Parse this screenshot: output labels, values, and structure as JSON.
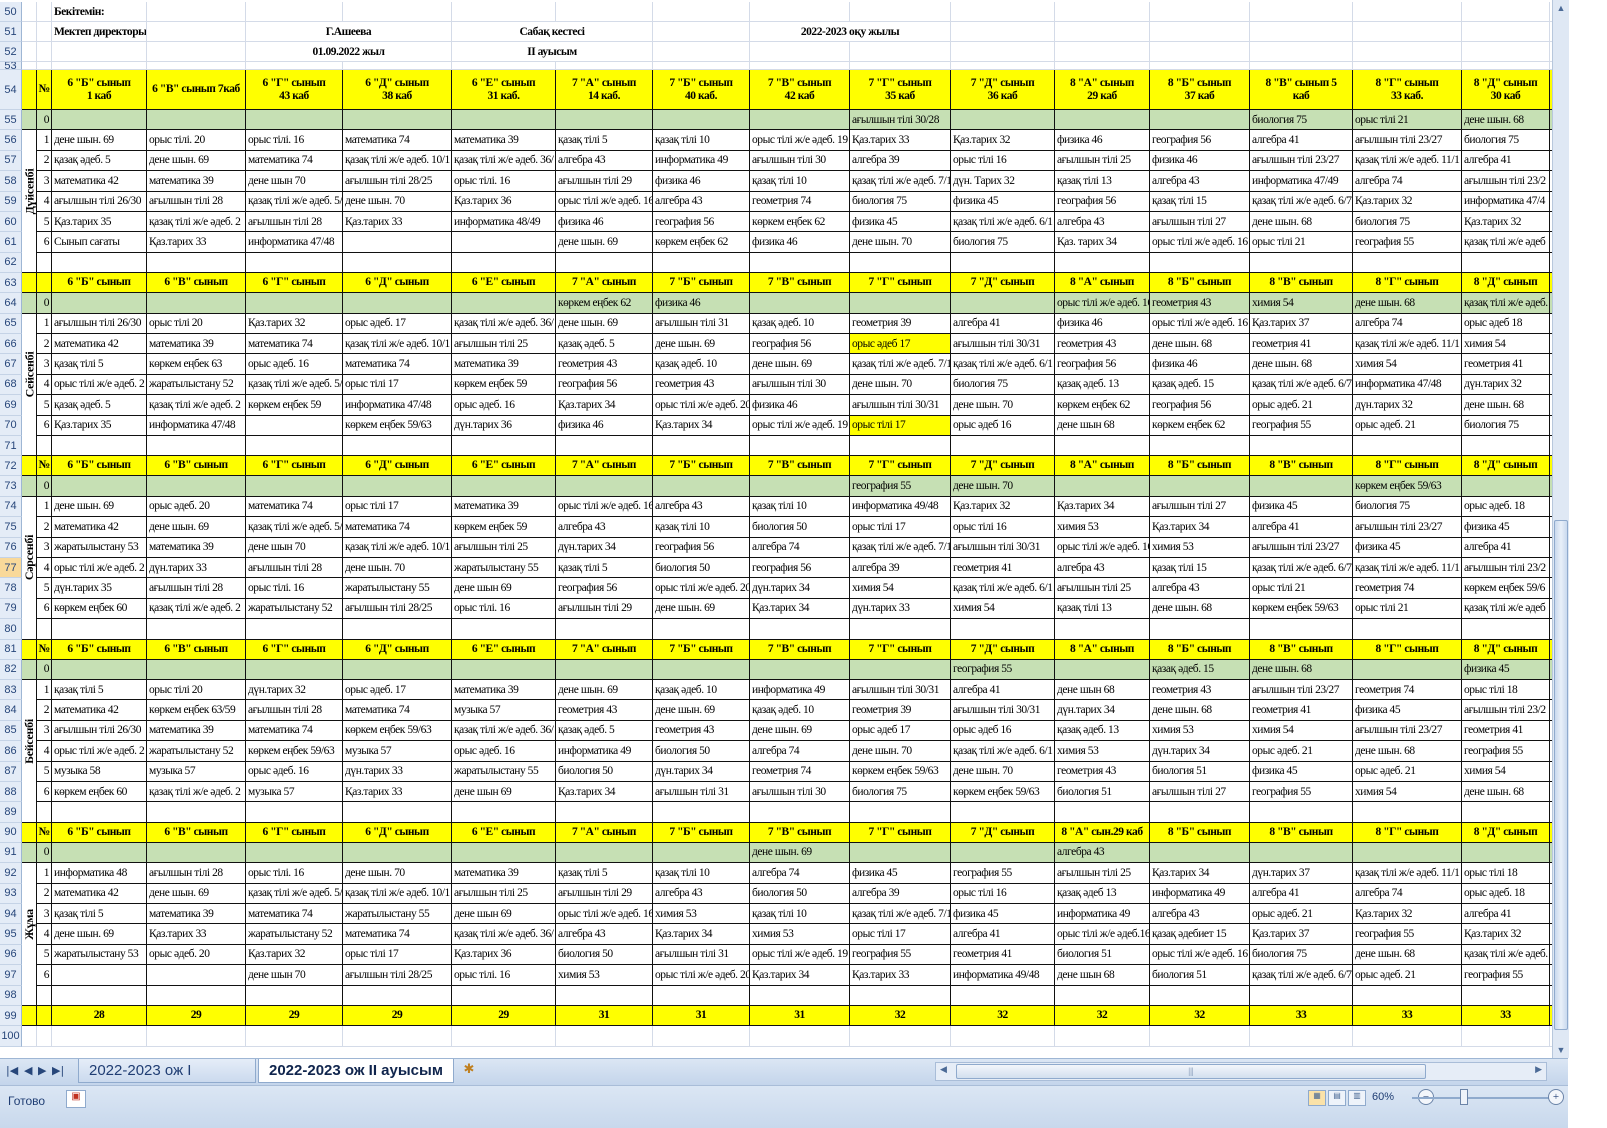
{
  "header": {
    "approve": "Бекітемін:",
    "director_label": "Мектеп директоры",
    "director_name": "Г.Ашеева",
    "date": "01.09.2022 жыл",
    "schedule_title": "Сабақ кестесі",
    "shift": "II ауысым",
    "year": "2022-2023 оқу жылы"
  },
  "row_numbers": [
    "50",
    "51",
    "52",
    "53",
    "54",
    "55",
    "56",
    "57",
    "58",
    "59",
    "60",
    "61",
    "62",
    "63",
    "64",
    "65",
    "66",
    "67",
    "68",
    "69",
    "70",
    "71",
    "72",
    "73",
    "74",
    "75",
    "76",
    "77",
    "78",
    "79",
    "80",
    "81",
    "82",
    "83",
    "84",
    "85",
    "86",
    "87",
    "88",
    "89",
    "90",
    "91",
    "92",
    "93",
    "94",
    "95",
    "96",
    "97",
    "98",
    "99",
    "100"
  ],
  "selected_row": "77",
  "lesson_numbers": [
    "0",
    "1",
    "2",
    "3",
    "4",
    "5",
    "6"
  ],
  "num_header": "№",
  "colors": {
    "header_yellow": "#ffff00",
    "zero_row_green": "#c6e0b4",
    "highlight": "#ffff00"
  },
  "days": [
    {
      "name": "Дүйсенбі",
      "num_label": "№",
      "classes": [
        "6 \"Б\" сынып\n1 каб",
        "6 \"В\" сынып  7каб",
        "6 \"Г\" сынып\n43 каб",
        "6 \"Д\" сынып\n38 каб",
        "6 \"Е\" сынып\n31 каб.",
        "7 \"А\" сынып\n14 каб.",
        "7 \"Б\" сынып\n40 каб.",
        "7 \"В\" сынып\n42 каб",
        "7 \"Г\" сынып\n35 каб",
        "7 \"Д\" сынып\n36 каб",
        "8 \"А\" сынып\n29 каб",
        "8 \"Б\" сынып\n37 каб",
        "8 \"В\" сынып        5\nкаб",
        "8 \"Г\" сынып\n33 каб.",
        "8 \"Д\" сынып\n30 каб"
      ],
      "row0": [
        "",
        "",
        "",
        "",
        "",
        "",
        "",
        "",
        "ағылшын тілі 30/28",
        "",
        "",
        "",
        "биология 75",
        "орыс тілі 21",
        "дене шын. 68"
      ],
      "lessons": [
        [
          "дене шын. 69",
          "орыс тілі. 20",
          "орыс тілі. 16",
          "математика 74",
          "математика 39",
          "қазақ тілі 5",
          "қазақ тілі 10",
          "орыс тілі ж/е әдеб. 19",
          "Қаз.тарих 33",
          "Қаз.тарих 32",
          "физика 46",
          "география 56",
          "алгебра 41",
          "ағылшын тілі 23/27",
          "биология 75"
        ],
        [
          "қазақ әдеб. 5",
          "дене шын. 69",
          "математика 74",
          "қазақ тілі ж/е әдеб. 10/1",
          "қазақ тілі ж/е әдеб. 36/",
          "алгебра 43",
          "информатика 49",
          "ағылшын тілі 30",
          "алгебра 39",
          "орыс тілі 16",
          "ағылшын тілі 25",
          "физика 46",
          "ағылшын тілі 23/27",
          "қазақ тілі ж/е әдеб. 11/1",
          "алгебра 41"
        ],
        [
          "математика 42",
          "математика 39",
          "дене шын 70",
          "ағылшын тілі 28/25",
          "орыс тілі. 16",
          "ағылшын тілі 29",
          "физика 46",
          "қазақ тілі 10",
          "қазақ тілі ж/е әдеб. 7/1",
          "дүн. Тарих  32",
          "қазақ тілі 13",
          "алгебра 43",
          "информатика 47/49",
          "алгебра 74",
          "ағылшын тілі 23/2"
        ],
        [
          "ағылшын тілі 26/30",
          "ағылшын тілі 28",
          "қазақ тілі ж/е әдеб. 5/",
          "дене шын. 70",
          "Қаз.тарих 36",
          "орыс тілі ж/е әдеб. 16",
          "алгебра 43",
          "геометрия 74",
          "биология 75",
          "физика 45",
          "география 56",
          "қазақ тілі 15",
          "қазақ тілі ж/е әдеб. 6/7",
          "Қаз.тарих 32",
          "информатика 47/4"
        ],
        [
          "Қаз.тарих 35",
          "қазақ тілі ж/е әдеб. 2",
          "ағылшын тілі 28",
          "Қаз.тарих 33",
          "информатика 48/49",
          "физика 46",
          "география 56",
          "көркем еңбек 62",
          "физика 45",
          "қазақ тілі ж/е әдеб. 6/1",
          "алгебра 43",
          "ағылшын тілі 27",
          "дене шын. 68",
          "биология 75",
          "Қаз.тарих 32"
        ],
        [
          "Сынып сағаты",
          "Қаз.тарих 33",
          "информатика 47/48",
          "",
          "",
          "дене шын. 69",
          "көркем еңбек 62",
          "физика 46",
          "дене шын. 70",
          "биология 75",
          "Қаз. тарих 34",
          "орыс тілі ж/е әдеб. 16",
          "орыс тілі 21",
          "география 55",
          "қазақ тілі ж/е әдеб"
        ]
      ],
      "highlight": []
    },
    {
      "name": "Сейсенбі",
      "num_label": "",
      "classes": [
        "6 \"Б\" сынып",
        "6 \"В\" сынып",
        "6 \"Г\" сынып",
        "6 \"Д\" сынып",
        "6 \"Е\" сынып",
        "7 \"А\" сынып",
        "7 \"Б\" сынып",
        "7 \"В\" сынып",
        "7 \"Г\" сынып",
        "7 \"Д\" сынып",
        "8 \"А\" сынып",
        "8 \"Б\" сынып",
        "8 \"В\" сынып",
        "8 \"Г\" сынып",
        "8 \"Д\" сынып"
      ],
      "row0": [
        "",
        "",
        "",
        "",
        "",
        "көркем еңбек 62",
        "физика 46",
        "",
        "",
        "",
        "орыс тілі ж/е әдеб. 16",
        "геометрия 43",
        "химия 54",
        "дене шын. 68",
        "қазақ тілі ж/е әдеб."
      ],
      "lessons": [
        [
          "ағылшын тілі 26/30",
          "орыс тілі 20",
          "Қаз.тарих 32",
          "орыс әдеб. 17",
          "қазақ тілі ж/е әдеб. 36/",
          "дене шын. 69",
          "ағылшын тілі 31",
          "қазақ әдеб. 10",
          "геометрия 39",
          "алгебра 41",
          "физика 46",
          "орыс тілі ж/е әдеб. 16",
          "Қаз.тарих 37",
          "алгебра 74",
          "орыс әдеб 18"
        ],
        [
          "математика 42",
          "математика 39",
          "математика 74",
          "қазақ тілі ж/е әдеб. 10/1",
          "ағылшын тілі 25",
          "қазақ әдеб. 5",
          "дене шын. 69",
          "география 56",
          "орыс әдеб 17",
          "ағылшын тілі 30/31",
          "геометрия 43",
          "дене шын. 68",
          "геометрия 41",
          "қазақ тілі ж/е әдеб. 11/1",
          "химия 54"
        ],
        [
          "қазақ тілі 5",
          "көркем еңбек 63",
          "орыс әдеб. 16",
          "математика 74",
          "математика 39",
          "геометрия 43",
          "қазақ әдеб. 10",
          "дене шын. 69",
          "қазақ тілі ж/е әдеб. 7/1",
          "қазақ тілі ж/е әдеб. 6/1",
          "география 56",
          "физика 46",
          "дене шын. 68",
          "химия 54",
          "геометрия 41"
        ],
        [
          "орыс тілі ж/е әдеб. 2",
          "жаратылыстану 52",
          "қазақ тілі ж/е әдеб. 5/",
          "орыс тілі 17",
          "көркем еңбек 59",
          "география 56",
          "геометрия 43",
          "ағылшын тілі 30",
          "дене шын. 70",
          "биология 75",
          "қазақ әдеб. 13",
          "қазақ әдеб. 15",
          "қазақ тілі ж/е әдеб. 6/7",
          "информатика 47/48",
          "дүн.тарих 32"
        ],
        [
          "қазақ әдеб. 5",
          "қазақ тілі ж/е әдеб. 2",
          "көркем еңбек 59",
          "информатика 47/48",
          "орыс әдеб. 16",
          "Қаз.тарих 34",
          "орыс тілі ж/е әдеб. 20",
          "физика 46",
          "ағылшын тілі 30/31",
          "дене шын. 70",
          "көркем еңбек 62",
          "география 56",
          "орыс әдеб. 21",
          "дүн.тарих 32",
          "дене шын. 68"
        ],
        [
          "Қаз.тарих 35",
          "информатика 47/48",
          "",
          "көркем еңбек 59/63",
          "дүн.тарих 36",
          "физика 46",
          "Қаз.тарих 34",
          "орыс тілі ж/е әдеб. 19",
          "орыс тілі 17",
          "орыс әдеб 16",
          "дене шын 68",
          "көркем еңбек 62",
          "география 55",
          "орыс әдеб. 21",
          "биология 75"
        ]
      ],
      "highlight": [
        [
          1,
          8
        ],
        [
          5,
          8
        ]
      ]
    },
    {
      "name": "Сәрсенбі",
      "num_label": "№",
      "classes": [
        "6 \"Б\" сынып",
        "6 \"В\" сынып",
        "6 \"Г\" сынып",
        "6 \"Д\" сынып",
        "6 \"Е\" сынып",
        "7 \"А\" сынып",
        "7 \"Б\" сынып",
        "7 \"В\" сынып",
        "7 \"Г\" сынып",
        "7 \"Д\" сынып",
        "8 \"А\" сынып",
        "8 \"Б\" сынып",
        "8 \"В\" сынып",
        "8 \"Г\" сынып",
        "8 \"Д\" сынып"
      ],
      "row0": [
        "",
        "",
        "",
        "",
        "",
        "",
        "",
        "",
        "география 55",
        "дене шын. 70",
        "",
        "",
        "",
        "көркем еңбек 59/63",
        ""
      ],
      "lessons": [
        [
          "дене шын. 69",
          "орыс әдеб. 20",
          "математика 74",
          "орыс тілі 17",
          "математика 39",
          "орыс тілі ж/е әдеб. 16",
          "алгебра 43",
          "қазақ тілі 10",
          "информатика 49/48",
          "Қаз.тарих 32",
          "Қаз.тарих 34",
          "ағылшын тілі 27",
          "физика 45",
          "биология 75",
          "орыс әдеб. 18"
        ],
        [
          "математика 42",
          "дене шын. 69",
          "қазақ тілі ж/е әдеб. 5/",
          "математика 74",
          "көркем еңбек 59",
          "алгебра 43",
          "қазақ тілі 10",
          "биология 50",
          "орыс тілі 17",
          "орыс тілі 16",
          "химия 53",
          "Қаз.тарих 34",
          "алгебра 41",
          "ағылшын тілі 23/27",
          "физика 45"
        ],
        [
          "жаратылыстану 53",
          "математика 39",
          "дене шын 70",
          "қазақ тілі ж/е әдеб. 10/1",
          "ағылшын тілі 25",
          "дүн.тарих 34",
          "география 56",
          "алгебра 74",
          "қазақ тілі ж/е әдеб. 7/1",
          "ағылшын тілі 30/31",
          "орыс тілі ж/е әдеб. 16",
          "химия 53",
          "ағылшын тілі 23/27",
          "физика 45",
          "алгебра 41"
        ],
        [
          "орыс тілі ж/е әдеб. 2",
          "дүн.тарих 33",
          "ағылшын тілі 28",
          "дене шын. 70",
          "жаратылыстану 55",
          "қазақ тілі 5",
          "биология 50",
          "география 56",
          "алгебра 39",
          "геометрия  41",
          "алгебра 43",
          "қазақ тілі 15",
          "қазақ тілі ж/е әдеб. 6/7",
          "қазақ тілі ж/е әдеб. 11/1",
          "ағылшын тілі 23/2"
        ],
        [
          "дүн.тарих 35",
          "ағылшын тілі 28",
          "орыс тілі. 16",
          "жаратылыстану 55",
          "дене шын 69",
          "география 56",
          "орыс тілі ж/е әдеб. 20",
          "дүн.тарих 34",
          "химия 54",
          "қазақ тілі ж/е әдеб. 6/1",
          "ағылшын тілі 25",
          "алгебра 43",
          "орыс тілі 21",
          "геометрия 74",
          "көркем еңбек 59/6"
        ],
        [
          "көркем еңбек 60",
          "қазақ тілі ж/е әдеб. 2",
          "жаратылыстану 52",
          "ағылшын тілі 28/25",
          "орыс тілі. 16",
          "ағылшын тілі 29",
          "дене шын. 69",
          "Қаз.тарих 34",
          "дүн.тарих 33",
          "химия 54",
          "қазақ тілі 13",
          "дене шын. 68",
          "көркем еңбек 59/63",
          "орыс тілі 21",
          "қазақ тілі ж/е әдеб"
        ]
      ],
      "highlight": []
    },
    {
      "name": "Бейсенбі",
      "num_label": "№",
      "classes": [
        "6 \"Б\" сынып",
        "6 \"В\" сынып",
        "6 \"Г\" сынып",
        "6 \"Д\" сынып",
        "6 \"Е\" сынып",
        "7 \"А\" сынып",
        "7 \"Б\" сынып",
        "7 \"В\" сынып",
        "7 \"Г\" сынып",
        "7 \"Д\" сынып",
        "8 \"А\" сынып",
        "8 \"Б\" сынып",
        "8 \"В\" сынып",
        "8 \"Г\" сынып",
        "8 \"Д\" сынып"
      ],
      "row0": [
        "",
        "",
        "",
        "",
        "",
        "",
        "",
        "",
        "",
        "география 55",
        "",
        "қазақ әдеб. 15",
        "дене шын. 68",
        "",
        "физика 45"
      ],
      "lessons": [
        [
          "қазақ тілі 5",
          "орыс тілі 20",
          "дүн.тарих 32",
          "орыс әдеб. 17",
          "математика 39",
          "дене шын. 69",
          "қазақ әдеб. 10",
          "информатика 49",
          "ағылшын тілі 30/31",
          "алгебра 41",
          "дене шын 68",
          "геометрия 43",
          "ағылшын тілі 23/27",
          "геометрия  74",
          "орыс тілі 18"
        ],
        [
          "математика 42",
          "көркем еңбек 63/59",
          "ағылшын тілі 28",
          "математика 74",
          "музыка 57",
          "геометрия 43",
          "дене шын. 69",
          "қазақ әдеб. 10",
          "геометрия 39",
          "ағылшын тілі 30/31",
          "дүн.тарих 34",
          "дене шын. 68",
          "геометрия 41",
          "физика 45",
          "ағылшын тілі 23/2"
        ],
        [
          "ағылшын тілі 26/30",
          "математика 39",
          "математика 74",
          "көркем еңбек 59/63",
          "қазақ тілі ж/е әдеб. 36/",
          "қазақ әдеб. 5",
          "геометрия 43",
          "дене шын. 69",
          "орыс әдеб 17",
          "орыс әдеб 16",
          "қазақ әдеб. 13",
          "химия 53",
          "химия 54",
          "ағылшын тілі 23/27",
          "геометрия 41"
        ],
        [
          "орыс тілі ж/е әдеб. 2",
          "жаратылыстану 52",
          "көркем еңбек 59/63",
          "музыка 57",
          "орыс әдеб. 16",
          "информатика 49",
          "биология 50",
          "алгебра 74",
          "дене шын. 70",
          "қазақ тілі ж/е әдеб. 6/1",
          "химия 53",
          "дүн.тарих 34",
          "орыс әдеб. 21",
          "дене шын. 68",
          "география 55"
        ],
        [
          "музыка 58",
          "музыка 57",
          "орыс әдеб. 16",
          "дүн.тарих 33",
          "жаратылыстану 55",
          "биология 50",
          "дүн.тарих 34",
          "геометрия 74",
          "көркем еңбек 59/63",
          "дене шын. 70",
          "геометрия 43",
          "биология 51",
          "физика 45",
          "орыс әдеб. 21",
          "химия 54"
        ],
        [
          "көркем еңбек 60",
          "қазақ тілі ж/е әдеб. 2",
          "музыка 57",
          "Қаз.тарих 33",
          "дене шын 69",
          "Қаз.тарих 34",
          "ағылшын тілі 31",
          "ағылшын тілі 30",
          "биология 75",
          "көркем еңбек 59/63",
          "биология 51",
          "ағылшын тілі 27",
          "география 55",
          "химия 54",
          "дене шын. 68"
        ]
      ],
      "highlight": []
    },
    {
      "name": "Жұма",
      "num_label": "№",
      "classes": [
        "6 \"Б\" сынып",
        "6 \"В\" сынып",
        "6 \"Г\" сынып",
        "6 \"Д\" сынып",
        "6 \"Е\" сынып",
        "7 \"А\" сынып",
        "7 \"Б\" сынып",
        "7 \"В\" сынып",
        "7 \"Г\" сынып",
        "7 \"Д\" сынып",
        "8 \"А\" сын.29 каб",
        "8 \"Б\" сынып",
        "8 \"В\" сынып",
        "8 \"Г\" сынып",
        "8 \"Д\" сынып"
      ],
      "row0": [
        "",
        "",
        "",
        "",
        "",
        "",
        "",
        "дене шын. 69",
        "",
        "",
        "алгебра 43",
        "",
        "",
        "",
        ""
      ],
      "lessons": [
        [
          "информатика 48",
          "ағылшын тілі 28",
          "орыс тілі. 16",
          "дене шын. 70",
          "математика 39",
          "қазақ тілі 5",
          "қазақ тілі 10",
          "алгебра 74",
          "физика 45",
          "география 55",
          "ағылшын тілі 25",
          "Қаз.тарих 34",
          "дүн.тарих 37",
          "қазақ тілі ж/е әдеб. 11/1",
          "орыс тілі 18"
        ],
        [
          "математика 42",
          "дене шын. 69",
          "қазақ тілі ж/е әдеб. 5/",
          "қазақ тілі ж/е әдеб. 10/1",
          "ағылшын тілі 25",
          "ағылшын тілі 29",
          "алгебра 43",
          "биология 50",
          "алгебра 39",
          "орыс тілі 16",
          "қазақ әдеб  13",
          "информатика 49",
          "алгебра 41",
          "алгебра 74",
          "орыс әдеб. 18"
        ],
        [
          "қазақ тілі 5",
          "математика 39",
          "математика 74",
          "жаратылыстану 55",
          "дене шын 69",
          "орыс тілі ж/е әдеб. 16",
          "химия 53",
          "қазақ тілі 10",
          "қазақ тілі ж/е әдеб. 7/1",
          "физика 45",
          "информатика 49",
          "алгебра 43",
          "орыс әдеб. 21",
          "Қаз.тарих 32",
          "алгебра 41"
        ],
        [
          "дене шын. 69",
          "Қаз.тарих 33",
          "жаратылыстану 52",
          "математика 74",
          "қазақ тілі ж/е әдеб. 36/",
          "алгебра 43",
          "Қаз.тарих 34",
          "химия 53",
          "орыс тілі 17",
          "алгебра 41",
          "орыс тілі ж/е әдеб.16",
          "қазақ әдебиет 15",
          "Қаз.тарих 37",
          "география 55",
          "Қаз.тарих 32"
        ],
        [
          "жаратылыстану 53",
          "орыс әдеб. 20",
          "Қаз.тарих 32",
          "орыс тілі 17",
          "Қаз.тарих 36",
          "биология 50",
          "ағылшын тілі 31",
          "орыс тілі ж/е әдеб. 19",
          "география 55",
          "геометрия  41",
          "биология 51",
          "орыс тілі ж/е әдеб. 16",
          "биология 75",
          "дене шын. 68",
          "қазақ тілі ж/е әдеб."
        ],
        [
          "",
          "",
          "дене шын 70",
          "ағылшын тілі 28/25",
          "орыс тілі. 16",
          "химия 53",
          "орыс тілі ж/е әдеб. 20",
          "Қаз.тарих 34",
          "Қаз.тарих 33",
          "информатика 49/48",
          "дене шын 68",
          "биология 51",
          "қазақ тілі ж/е әдеб. 6/7",
          "орыс әдеб. 21",
          "география 55"
        ]
      ],
      "highlight": []
    }
  ],
  "totals": [
    "28",
    "29",
    "29",
    "29",
    "29",
    "31",
    "31",
    "31",
    "32",
    "32",
    "32",
    "32",
    "33",
    "33",
    "33"
  ],
  "sheet_tabs": [
    {
      "label": "2022-2023 ож  I ауысым",
      "active": false
    },
    {
      "label": "2022-2023 ож II ауысым",
      "active": true
    }
  ],
  "status": {
    "ready": "Готово",
    "zoom": "60%"
  }
}
